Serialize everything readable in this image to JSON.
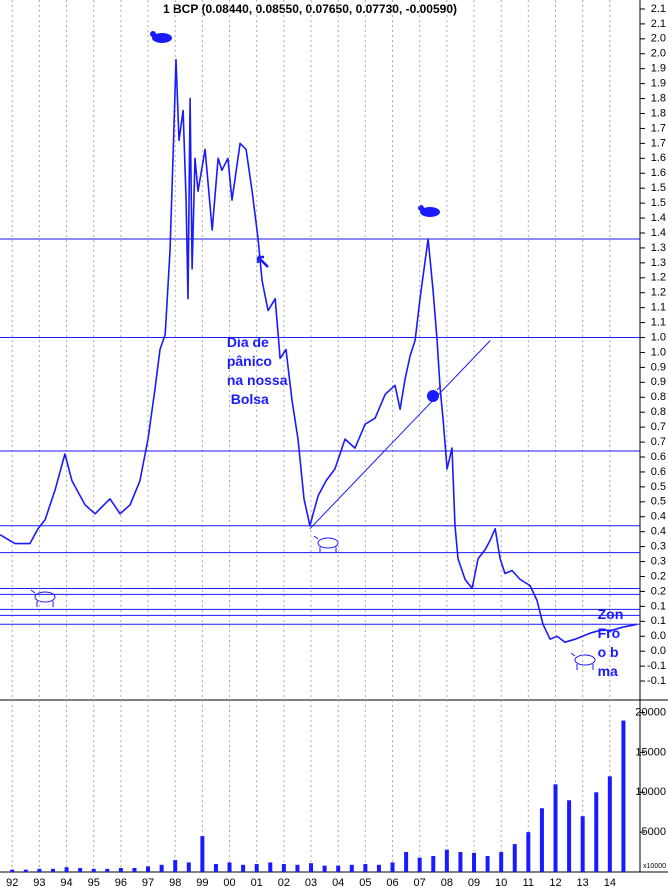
{
  "chart_data": {
    "type": "line",
    "title": "1 BCP (0.08440, 0.08550, 0.07650, 0.07730, -0.00590)",
    "xlim": [
      1991.55,
      2015.0
    ],
    "ylim": [
      -0.18,
      2.13
    ],
    "x": [
      1991.55,
      1992.1,
      1992.65,
      1992.95,
      1993.21,
      1993.58,
      1993.94,
      1994.2,
      1994.68,
      1995.05,
      1995.6,
      1995.97,
      1996.34,
      1996.7,
      1997.0,
      1997.26,
      1997.44,
      1997.63,
      1997.81,
      1997.92,
      1998.03,
      1998.14,
      1998.29,
      1998.4,
      1998.47,
      1998.55,
      1998.62,
      1998.73,
      1998.84,
      1999.1,
      1999.36,
      1999.58,
      1999.72,
      1999.94,
      2000.09,
      2000.39,
      2000.61,
      2000.83,
      2001.05,
      2001.2,
      2001.42,
      2001.68,
      2001.86,
      2002.08,
      2002.3,
      2002.52,
      2002.74,
      2002.96,
      2003.26,
      2003.55,
      2003.88,
      2004.25,
      2004.62,
      2004.99,
      2005.36,
      2005.73,
      2006.09,
      2006.28,
      2006.46,
      2006.65,
      2006.83,
      2007.01,
      2007.31,
      2007.49,
      2007.64,
      2007.75,
      2007.86,
      2008.01,
      2008.19,
      2008.3,
      2008.41,
      2008.67,
      2008.93,
      2009.15,
      2009.41,
      2009.59,
      2009.78,
      2009.96,
      2010.14,
      2010.4,
      2010.7,
      2011.06,
      2011.32,
      2011.54,
      2011.8,
      2012.06,
      2012.35,
      2012.72,
      2013.27,
      2013.64,
      2014.08,
      2014.45,
      2015.0
    ],
    "series": [
      {
        "color": "#1a1aff",
        "values": [
          0.34,
          0.31,
          0.31,
          0.36,
          0.39,
          0.49,
          0.61,
          0.52,
          0.44,
          0.41,
          0.46,
          0.41,
          0.44,
          0.52,
          0.66,
          0.83,
          0.96,
          1.01,
          1.29,
          1.6,
          1.93,
          1.66,
          1.76,
          1.46,
          1.13,
          1.8,
          1.23,
          1.6,
          1.49,
          1.63,
          1.36,
          1.6,
          1.56,
          1.6,
          1.46,
          1.65,
          1.63,
          1.49,
          1.33,
          1.19,
          1.09,
          1.13,
          0.93,
          0.96,
          0.79,
          0.66,
          0.46,
          0.37,
          0.47,
          0.52,
          0.56,
          0.66,
          0.63,
          0.71,
          0.73,
          0.81,
          0.84,
          0.76,
          0.86,
          0.94,
          0.99,
          1.13,
          1.33,
          1.16,
          0.99,
          0.83,
          0.73,
          0.56,
          0.63,
          0.37,
          0.26,
          0.19,
          0.16,
          0.26,
          0.29,
          0.32,
          0.36,
          0.26,
          0.21,
          0.22,
          0.19,
          0.17,
          0.12,
          0.04,
          -0.01,
          0.0,
          -0.02,
          -0.01,
          0.01,
          0.02,
          0.02,
          0.03,
          0.04
        ]
      }
    ],
    "yticks": [
      2.1,
      {
        "value": 2.05,
        "label": "2.1"
      },
      {
        "value": 2.0,
        "label": "2.0"
      },
      {
        "value": 1.95,
        "label": "2.0"
      },
      1.9,
      {
        "value": 1.85,
        "label": "1.9"
      },
      1.8,
      {
        "value": 1.75,
        "label": "1.8"
      },
      1.7,
      {
        "value": 1.65,
        "label": "1.7"
      },
      1.6,
      {
        "value": 1.55,
        "label": "1.6"
      },
      1.5,
      {
        "value": 1.45,
        "label": "1.5"
      },
      1.4,
      {
        "value": 1.35,
        "label": "1.4"
      },
      1.3,
      {
        "value": 1.25,
        "label": "1.3"
      },
      1.2,
      {
        "value": 1.15,
        "label": "1.2"
      },
      1.1,
      {
        "value": 1.05,
        "label": "1.1"
      },
      {
        "value": 1.0,
        "label": "1.0"
      },
      {
        "value": 0.95,
        "label": "1.0"
      },
      0.9,
      {
        "value": 0.85,
        "label": "0.9"
      },
      0.8,
      {
        "value": 0.75,
        "label": "0.8"
      },
      0.7,
      {
        "value": 0.65,
        "label": "0.7"
      },
      0.6,
      {
        "value": 0.55,
        "label": "0.6"
      },
      0.5,
      {
        "value": 0.45,
        "label": "0.5"
      },
      0.4,
      {
        "value": 0.35,
        "label": "0.4"
      },
      0.3,
      {
        "value": 0.25,
        "label": "0.3"
      },
      0.2,
      {
        "value": 0.15,
        "label": "0.2"
      },
      0.1,
      {
        "value": 0.05,
        "label": "0.1"
      },
      {
        "value": 0,
        "label": "0.0"
      },
      {
        "value": -0.05,
        "label": "0.0"
      },
      -0.1,
      {
        "value": -0.15,
        "label": "-0.1"
      }
    ],
    "xticks": [
      {
        "value": 1992,
        "label": "92"
      },
      {
        "value": 1993,
        "label": "93"
      },
      {
        "value": 1994,
        "label": "94"
      },
      {
        "value": 1995,
        "label": "95"
      },
      {
        "value": 1996,
        "label": "96"
      },
      {
        "value": 1997,
        "label": "97"
      },
      {
        "value": 1998,
        "label": "98"
      },
      {
        "value": 1999,
        "label": "99"
      },
      {
        "value": 2000,
        "label": "00"
      },
      {
        "value": 2001,
        "label": "01"
      },
      {
        "value": 2002,
        "label": "02"
      },
      {
        "value": 2003,
        "label": "03"
      },
      {
        "value": 2004,
        "label": "04"
      },
      {
        "value": 2005,
        "label": "05"
      },
      {
        "value": 2006,
        "label": "06"
      },
      {
        "value": 2007,
        "label": "07"
      },
      {
        "value": 2008,
        "label": "08"
      },
      {
        "value": 2009,
        "label": "09"
      },
      {
        "value": 2010,
        "label": "10"
      },
      {
        "value": 2011,
        "label": "11"
      },
      {
        "value": 2012,
        "label": "12"
      },
      {
        "value": 2013,
        "label": "13"
      },
      {
        "value": 2014,
        "label": "14"
      }
    ],
    "grid": true,
    "support_lines": [
      1.33,
      1.0,
      0.62,
      0.37,
      0.28,
      0.16,
      0.14,
      0.09,
      0.07,
      0.04
    ],
    "trendline": {
      "x": [
        2002.96,
        2009.6
      ],
      "values": [
        0.36,
        0.99
      ]
    },
    "annotations": [
      {
        "lines": [
          "Dia de",
          "pânico",
          "na nossa",
          " Bolsa"
        ],
        "x": 1999.9,
        "y": 0.98
      },
      {
        "lines": [
          "Zon",
          "Fro",
          "o b",
          "ma"
        ],
        "x": 2013.55,
        "y": 0.07
      }
    ],
    "volume": {
      "color": "#1a1aff",
      "ylim": [
        0,
        21200
      ],
      "yticks": [
        5000,
        10000,
        15000,
        20000
      ],
      "unit_label": "x10000",
      "x": [
        1992,
        1992.5,
        1993,
        1993.5,
        1994,
        1994.5,
        1995,
        1995.5,
        1996,
        1996.5,
        1997,
        1997.5,
        1998,
        1998.5,
        1999,
        1999.5,
        2000,
        2000.5,
        2001,
        2001.5,
        2002,
        2002.5,
        2003,
        2003.5,
        2004,
        2004.5,
        2005,
        2005.5,
        2006,
        2006.5,
        2007,
        2007.5,
        2008,
        2008.5,
        2009,
        2009.5,
        2010,
        2010.5,
        2011,
        2011.5,
        2012,
        2012.5,
        2013,
        2013.5,
        2014,
        2014.5
      ],
      "values": [
        300,
        300,
        400,
        400,
        600,
        500,
        400,
        400,
        500,
        500,
        700,
        900,
        1500,
        1200,
        4500,
        1000,
        1200,
        900,
        1000,
        1200,
        1000,
        900,
        1100,
        800,
        800,
        900,
        1000,
        900,
        1200,
        2500,
        1800,
        2000,
        2800,
        2500,
        2400,
        2000,
        2500,
        3500,
        5000,
        8000,
        11000,
        9000,
        7000,
        10000,
        12000,
        19000
      ]
    }
  }
}
